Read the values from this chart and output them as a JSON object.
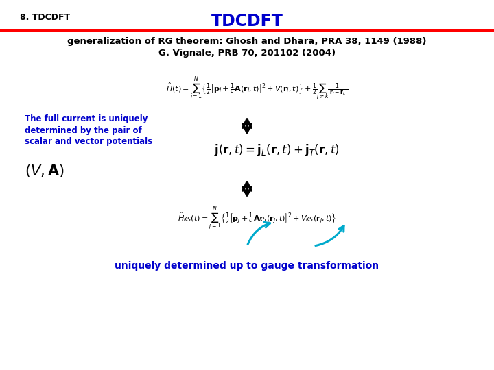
{
  "title": "TDCDFT",
  "slide_number": "8. TDCDFT",
  "header_line_color": "#FF0000",
  "title_color": "#0000CC",
  "slide_number_color": "#000000",
  "subtitle_line1": "generalization of RG theorem: Ghosh and Dhara, PRA 38, 1149 (1988)",
  "subtitle_line2": "G. Vignale, PRB 70, 201102 (2004)",
  "left_text_line1": "The full current is uniquely",
  "left_text_line2": "determined by the pair of",
  "left_text_line3": "scalar and vector potentials",
  "left_text_color": "#0000CC",
  "bottom_text": "uniquely determined up to gauge transformation",
  "bottom_text_color": "#0000CC",
  "bg_color": "#FFFFFF"
}
